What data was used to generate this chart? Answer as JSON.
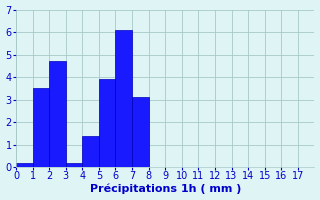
{
  "x_values": [
    0,
    1,
    2,
    3,
    4,
    5,
    6,
    7
  ],
  "bar_heights": [
    0.2,
    3.5,
    4.7,
    0.2,
    1.4,
    3.9,
    6.1,
    3.1
  ],
  "bar_color": "#1a1aff",
  "bar_edge_color": "#0000bb",
  "background_color": "#dff5f5",
  "grid_color": "#a8c8c8",
  "text_color": "#0000cc",
  "xlabel": "Précipitations 1h ( mm )",
  "xlim": [
    0,
    18
  ],
  "ylim": [
    0,
    7
  ],
  "yticks": [
    0,
    1,
    2,
    3,
    4,
    5,
    6,
    7
  ],
  "xticks": [
    0,
    1,
    2,
    3,
    4,
    5,
    6,
    7,
    8,
    9,
    10,
    11,
    12,
    13,
    14,
    15,
    16,
    17
  ],
  "bar_width": 1.0,
  "tick_fontsize": 7.0,
  "xlabel_fontsize": 8.0
}
